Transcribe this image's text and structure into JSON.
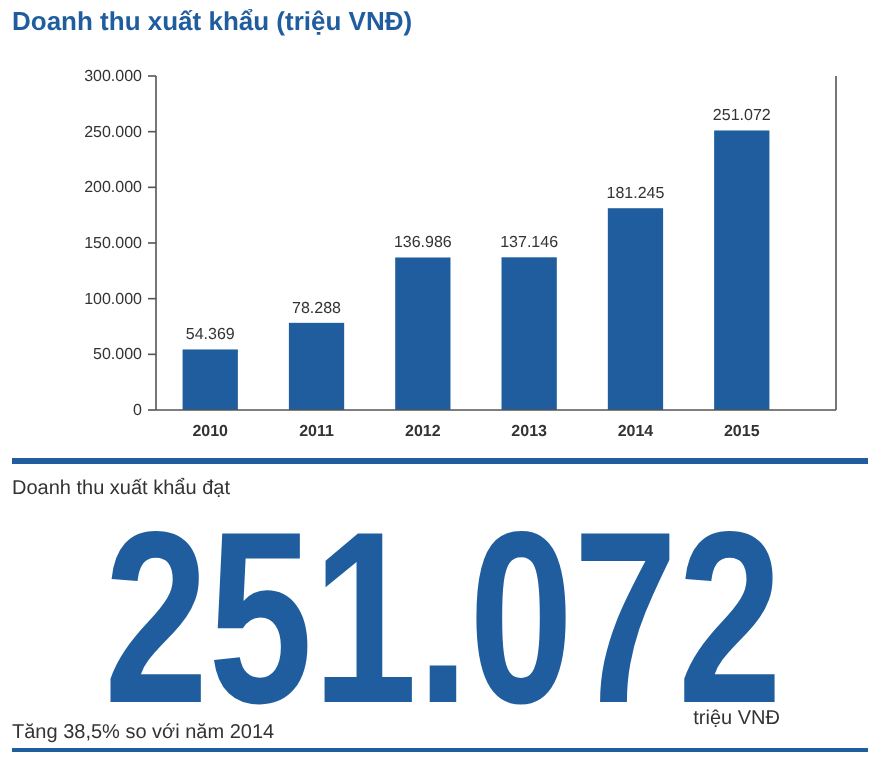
{
  "chart_data": {
    "type": "bar",
    "title": "Doanh thu xuất khẩu (triệu VNĐ)",
    "categories": [
      "2010",
      "2011",
      "2012",
      "2013",
      "2014",
      "2015"
    ],
    "values": [
      54369,
      78288,
      136986,
      137146,
      181245,
      251072
    ],
    "value_labels": [
      "54.369",
      "78.288",
      "136.986",
      "137.146",
      "181.245",
      "251.072"
    ],
    "color": "#1f5d9e",
    "ylim": [
      0,
      300000
    ],
    "yticks": [
      0,
      {
        "value": 50000,
        "label": "50.000"
      },
      {
        "value": 100000,
        "label": "100.000"
      },
      {
        "value": 150000,
        "label": "150.000"
      },
      {
        "value": 200000,
        "label": "200.000"
      },
      {
        "value": 250000,
        "label": "250.000"
      },
      {
        "value": 300000,
        "label": "300.000"
      }
    ],
    "grid": false,
    "annotations": [
      "Doanh thu xuất khẩu đạt",
      "251.072",
      "triệu VNĐ",
      "Tăng 38,5% so với năm 2014"
    ]
  }
}
